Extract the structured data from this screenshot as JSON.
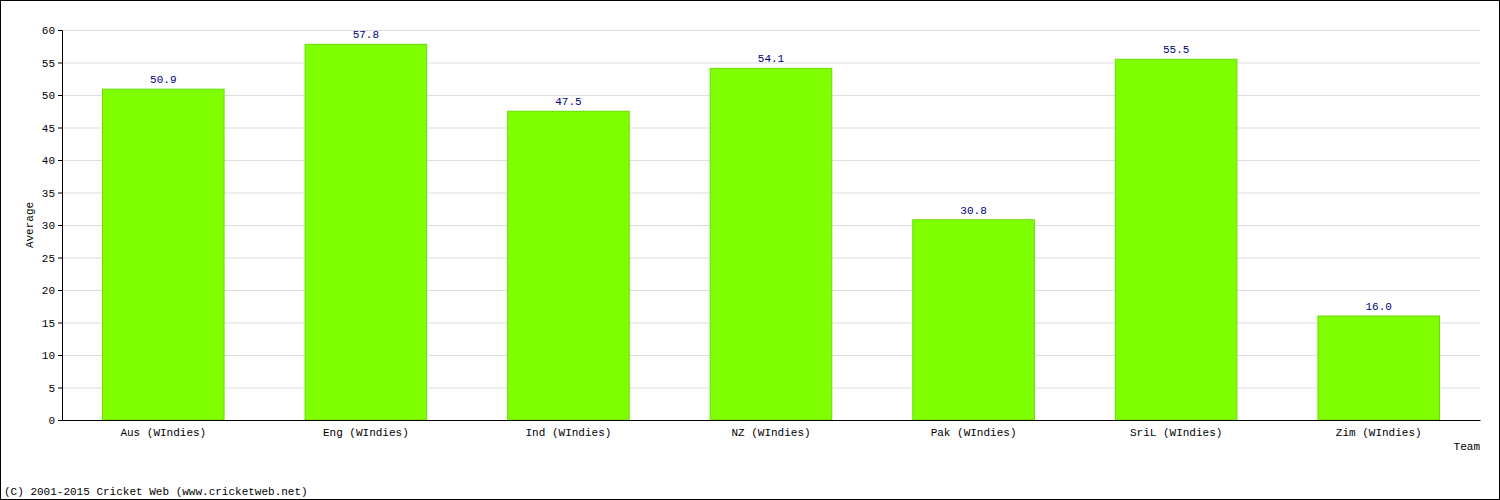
{
  "chart_data": {
    "type": "bar",
    "x_label": "Team",
    "y_label": "Average",
    "annotations": [
      "(C) 2001-2015 Cricket Web (www.cricketweb.net)"
    ],
    "categories": [
      "Aus (WIndies)",
      "Eng (WIndies)",
      "Ind (WIndies)",
      "NZ (WIndies)",
      "Pak (WIndies)",
      "SriL (WIndies)",
      "Zim (WIndies)"
    ],
    "values": [
      50.9,
      57.8,
      47.5,
      54.1,
      30.8,
      55.5,
      16.0
    ],
    "value_labels": [
      "50.9",
      "57.8",
      "47.5",
      "54.1",
      "30.8",
      "55.5",
      "16.0"
    ],
    "color": "#80ff00",
    "ylim": [
      0,
      60
    ],
    "yticks": [
      0,
      5,
      10,
      15,
      20,
      25,
      30,
      35,
      40,
      45,
      50,
      55,
      60
    ],
    "grid": true,
    "data_labels": true
  }
}
